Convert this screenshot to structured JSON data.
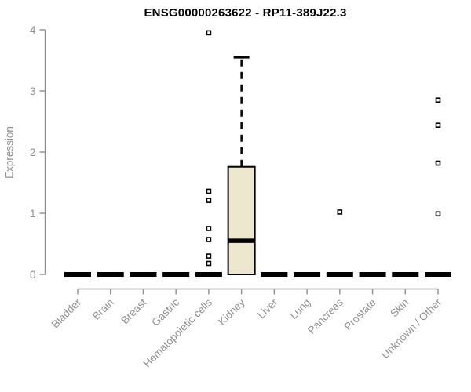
{
  "chart_data": {
    "type": "boxplot",
    "title": "ENSG00000263622 - RP11-389J22.3",
    "ylabel": "Expression",
    "xlabel": "",
    "ylim": [
      0,
      4
    ],
    "yticks": [
      0,
      1,
      2,
      3,
      4
    ],
    "grid": false,
    "legend": null,
    "categories": [
      "Bladder",
      "Brain",
      "Breast",
      "Gastric",
      "Hematopoietic cells",
      "Kidney",
      "Liver",
      "Lung",
      "Pancreas",
      "Prostate",
      "Skin",
      "Unknown / Other"
    ],
    "boxes": [
      {
        "category": "Bladder",
        "low": 0,
        "q1": 0,
        "median": 0,
        "q3": 0,
        "high": 0,
        "outliers": []
      },
      {
        "category": "Brain",
        "low": 0,
        "q1": 0,
        "median": 0,
        "q3": 0,
        "high": 0,
        "outliers": []
      },
      {
        "category": "Breast",
        "low": 0,
        "q1": 0,
        "median": 0,
        "q3": 0,
        "high": 0,
        "outliers": []
      },
      {
        "category": "Gastric",
        "low": 0,
        "q1": 0,
        "median": 0,
        "q3": 0,
        "high": 0,
        "outliers": []
      },
      {
        "category": "Hematopoietic cells",
        "low": 0,
        "q1": 0,
        "median": 0,
        "q3": 0,
        "high": 0,
        "outliers": [
          3.95,
          1.36,
          1.21,
          0.75,
          0.57,
          0.3,
          0.18
        ]
      },
      {
        "category": "Kidney",
        "low": 0,
        "q1": 0,
        "median": 0.55,
        "q3": 1.76,
        "high": 3.55,
        "outliers": []
      },
      {
        "category": "Liver",
        "low": 0,
        "q1": 0,
        "median": 0,
        "q3": 0,
        "high": 0,
        "outliers": []
      },
      {
        "category": "Lung",
        "low": 0,
        "q1": 0,
        "median": 0,
        "q3": 0,
        "high": 0,
        "outliers": []
      },
      {
        "category": "Pancreas",
        "low": 0,
        "q1": 0,
        "median": 0,
        "q3": 0,
        "high": 0,
        "outliers": [
          1.02
        ]
      },
      {
        "category": "Prostate",
        "low": 0,
        "q1": 0,
        "median": 0,
        "q3": 0,
        "high": 0,
        "outliers": []
      },
      {
        "category": "Skin",
        "low": 0,
        "q1": 0,
        "median": 0,
        "q3": 0,
        "high": 0,
        "outliers": []
      },
      {
        "category": "Unknown / Other",
        "low": 0,
        "q1": 0,
        "median": 0,
        "q3": 0,
        "high": 0,
        "outliers": [
          2.85,
          2.44,
          1.82,
          0.99
        ]
      }
    ],
    "colors": {
      "background": "#ffffff",
      "box_fill": "#ece7cd",
      "box_border": "#000000",
      "median": "#000000",
      "whisker": "#000000",
      "outlier_stroke": "#000000",
      "outlier_fill": "#ffffff",
      "axis": "#8f8f8f",
      "tick_label": "#909090",
      "title": "#000000"
    }
  }
}
